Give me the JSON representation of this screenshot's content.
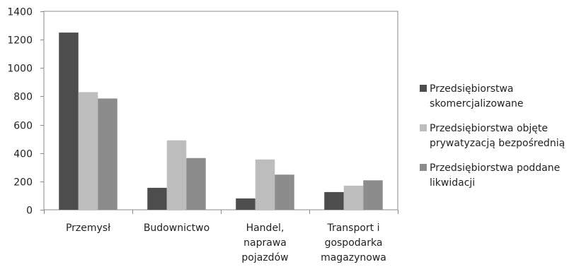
{
  "chart_data": {
    "type": "bar",
    "categories": [
      [
        "Przemysł"
      ],
      [
        "Budownictwo"
      ],
      [
        "Handel,",
        "naprawa",
        "pojazdów"
      ],
      [
        "Transport i",
        "gospodarka",
        "magazynowa"
      ]
    ],
    "series": [
      {
        "name": [
          "Przedsiębiorstwa",
          "skomercjalizowane"
        ],
        "color": "#4d4d4d",
        "values": [
          1250,
          155,
          80,
          125
        ]
      },
      {
        "name": [
          "Przedsiębiorstwa objęte",
          "prywatyzacją bezpośrednią"
        ],
        "color": "#bdbdbd",
        "values": [
          830,
          490,
          355,
          170
        ]
      },
      {
        "name": [
          "Przedsiębiorstwa poddane",
          "likwidacji"
        ],
        "color": "#8c8c8c",
        "values": [
          785,
          365,
          248,
          208
        ]
      }
    ],
    "yticks": [
      "0",
      "200",
      "400",
      "600",
      "800",
      "1000",
      "1200",
      "1400"
    ],
    "ylim": [
      0,
      1400
    ],
    "legend_position": "right"
  }
}
